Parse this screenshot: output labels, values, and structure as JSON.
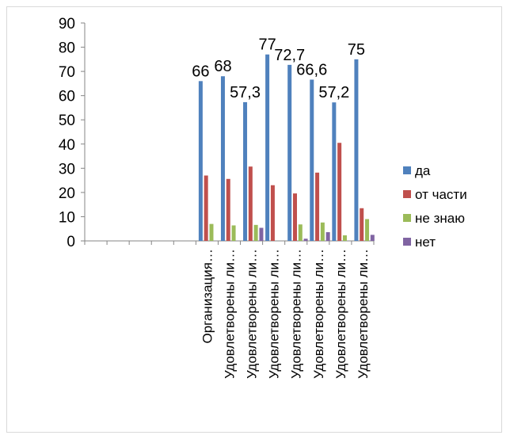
{
  "chart_data": {
    "type": "bar",
    "title": "",
    "xlabel": "",
    "ylabel": "",
    "ylim": [
      0,
      90
    ],
    "yticks": [
      0,
      10,
      20,
      30,
      40,
      50,
      60,
      70,
      80,
      90
    ],
    "grid": false,
    "legend_position": "right",
    "categories": [
      "",
      "",
      "",
      "",
      "",
      "Организация…",
      "Удовлетворены ли…",
      "Удовлетворены ли…",
      "Удовлетворены ли…",
      "Удовлетворены ли…",
      "Удовлетворены ли…",
      "Удовлетворены ли…",
      "Удовлетворены ли…"
    ],
    "series": [
      {
        "name": "да",
        "color": "#4f81bd",
        "values": [
          null,
          null,
          null,
          null,
          null,
          66,
          68,
          57.3,
          77,
          72.7,
          66.6,
          57.2,
          75
        ],
        "labels": [
          "",
          "",
          "",
          "",
          "",
          "66",
          "68",
          "57,3",
          "77",
          "72,7",
          "66,6",
          "57,2",
          "75"
        ]
      },
      {
        "name": "от части",
        "color": "#c0504d",
        "values": [
          null,
          null,
          null,
          null,
          null,
          27,
          25.6,
          30.7,
          23,
          19.6,
          28.2,
          40.5,
          13.5
        ]
      },
      {
        "name": "не знаю",
        "color": "#9bbb59",
        "values": [
          null,
          null,
          null,
          null,
          null,
          7,
          6.4,
          6.6,
          0,
          6.8,
          7.6,
          2.3,
          9
        ]
      },
      {
        "name": "нет",
        "color": "#8064a2",
        "values": [
          null,
          null,
          null,
          null,
          null,
          0,
          0,
          5.4,
          0,
          0.9,
          3.6,
          0,
          2.5
        ]
      }
    ]
  }
}
